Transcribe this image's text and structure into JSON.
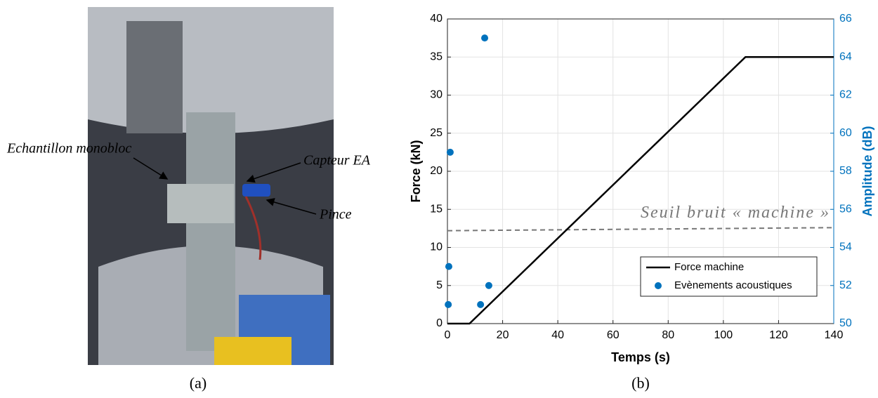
{
  "photo": {
    "labels": [
      "Echantillon monobloc",
      "Capteur EA",
      "Pince"
    ],
    "caption": "(a)"
  },
  "chart_caption": "(b)",
  "chart_data": {
    "type": "line",
    "x_label": "Temps (s)",
    "y_label": "Force (kN)",
    "y2_label": "Amplitude (dB)",
    "xlim": [
      0,
      140
    ],
    "xticks": [
      0,
      20,
      40,
      60,
      80,
      100,
      120,
      140
    ],
    "ylim": [
      0,
      40
    ],
    "yticks": [
      0,
      5,
      10,
      15,
      20,
      25,
      30,
      35,
      40
    ],
    "y2lim": [
      50,
      66
    ],
    "y2ticks": [
      50,
      52,
      54,
      56,
      58,
      60,
      62,
      64,
      66
    ],
    "y2_color": "#0072bd",
    "grid": true,
    "legend": "lower right",
    "series": [
      {
        "name": "Force machine",
        "type": "line",
        "color": "#000000",
        "x": [
          0,
          8,
          108,
          140
        ],
        "values": [
          0,
          0,
          35,
          35
        ]
      },
      {
        "name": "Evènements acoustiques",
        "type": "scatter",
        "axis": "y2",
        "color": "#0072bd",
        "x": [
          0.3,
          0.5,
          1,
          12,
          13.5,
          15
        ],
        "values": [
          51,
          53,
          59,
          51,
          65,
          52
        ]
      }
    ],
    "annotations": [
      {
        "text": "Seuil bruit « machine »",
        "color": "#777777",
        "x": [
          0,
          140
        ],
        "values": [
          12.2,
          12.6
        ]
      }
    ]
  }
}
